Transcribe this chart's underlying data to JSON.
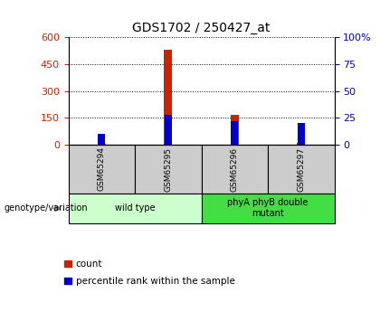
{
  "title": "GDS1702 / 250427_at",
  "samples": [
    "GSM65294",
    "GSM65295",
    "GSM65296",
    "GSM65297"
  ],
  "count_values": [
    5,
    530,
    168,
    10
  ],
  "percentile_values": [
    10,
    28,
    22,
    20
  ],
  "left_ylim": [
    0,
    600
  ],
  "right_ylim": [
    0,
    100
  ],
  "left_yticks": [
    0,
    150,
    300,
    450,
    600
  ],
  "right_yticks": [
    0,
    25,
    50,
    75,
    100
  ],
  "right_yticklabels": [
    "0",
    "25",
    "50",
    "75",
    "100%"
  ],
  "bar_color": "#CC2200",
  "percentile_color": "#0000CC",
  "bar_width": 0.12,
  "groups": [
    {
      "label": "wild type",
      "indices": [
        0,
        1
      ],
      "color": "#CCFFCC"
    },
    {
      "label": "phyA phyB double\nmutant",
      "indices": [
        2,
        3
      ],
      "color": "#44DD44"
    }
  ],
  "legend_items": [
    {
      "label": "count",
      "color": "#CC2200"
    },
    {
      "label": "percentile rank within the sample",
      "color": "#0000CC"
    }
  ],
  "genotype_label": "genotype/variation",
  "bg_color_samples": "#CCCCCC",
  "left_tick_color": "#CC2200",
  "right_tick_color": "#0000CC"
}
